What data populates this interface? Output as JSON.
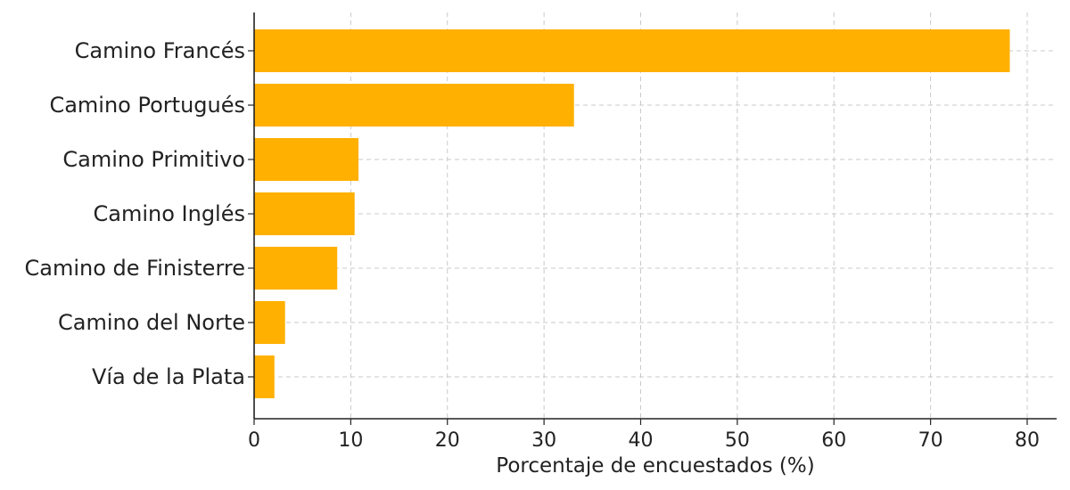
{
  "chart_data": {
    "type": "bar",
    "orientation": "horizontal",
    "categories": [
      "Camino Francés",
      "Camino Portugués",
      "Camino Primitivo",
      "Camino Inglés",
      "Camino de Finisterre",
      "Camino del Norte",
      "Vía de la Plata"
    ],
    "values": [
      78.2,
      33.1,
      10.8,
      10.4,
      8.6,
      3.2,
      2.1
    ],
    "title": "",
    "xlabel": "Porcentaje de encuestados (%)",
    "ylabel": "",
    "xlim": [
      0,
      83
    ],
    "xticks": [
      0,
      10,
      20,
      30,
      40,
      50,
      60,
      70,
      80
    ],
    "grid": true,
    "bar_color": "#FFB000"
  }
}
